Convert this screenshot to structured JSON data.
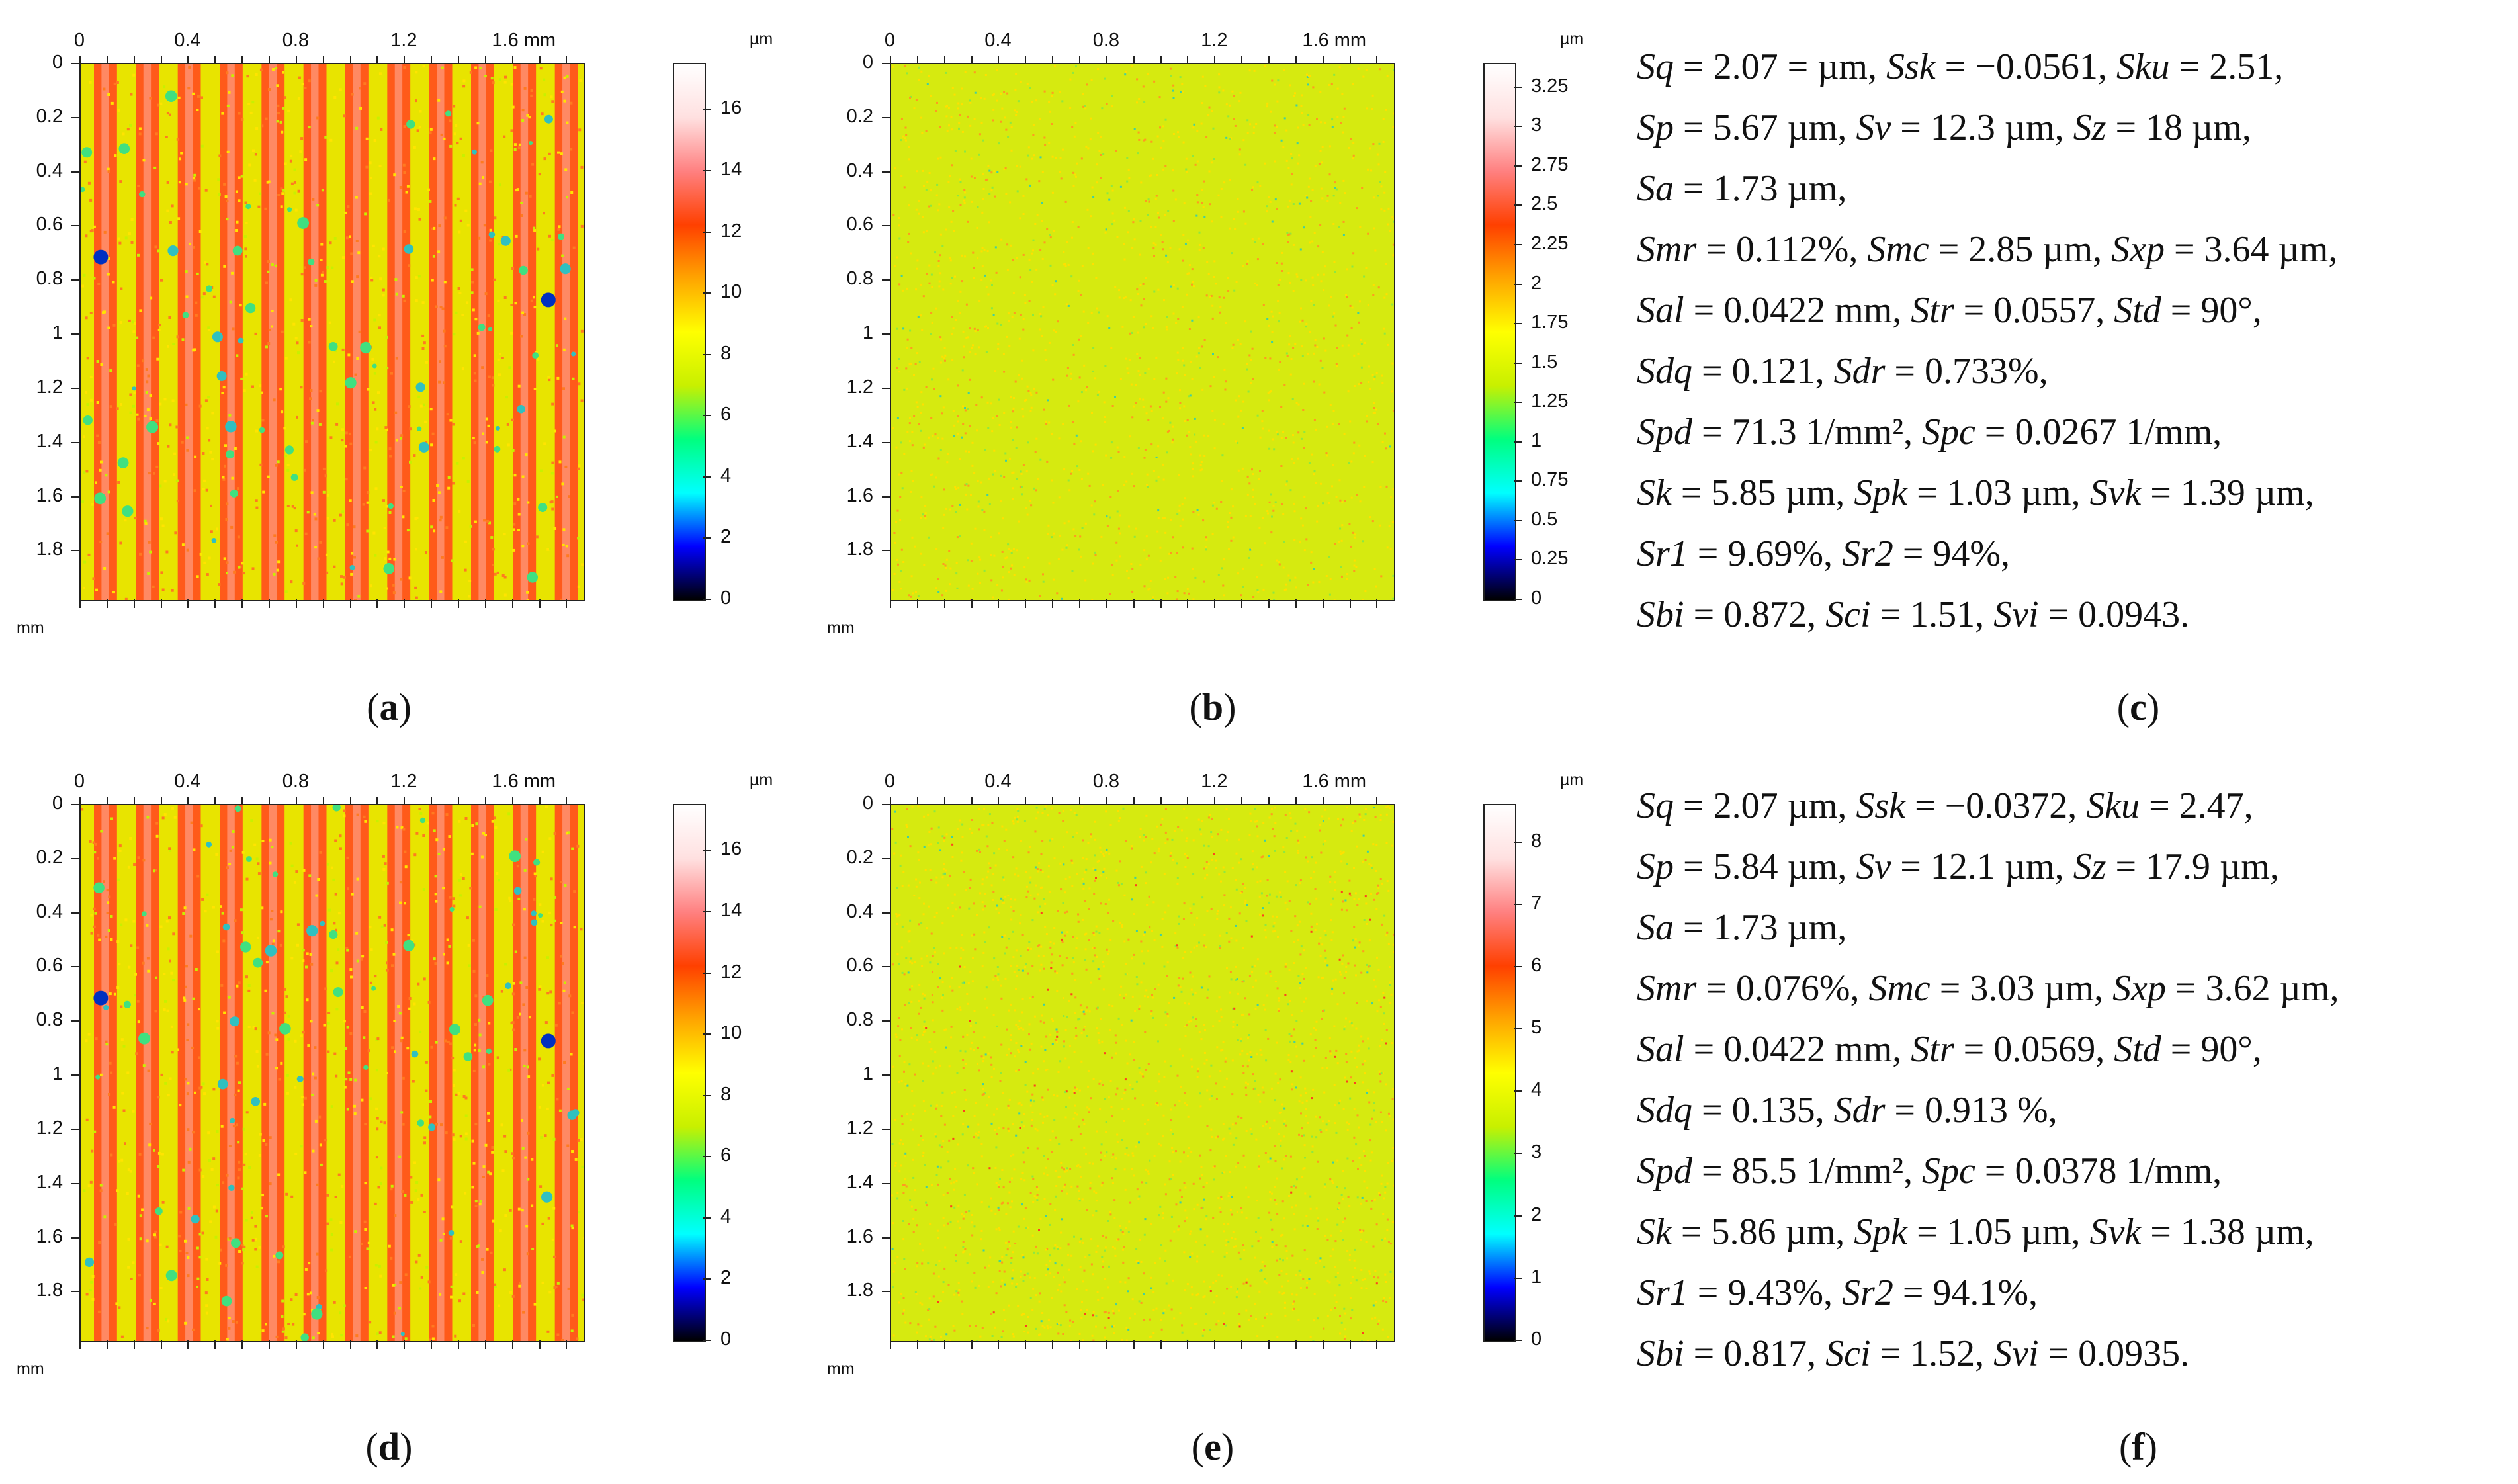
{
  "colors": {
    "scale": [
      "#000000",
      "#0000ff",
      "#00ffff",
      "#00ff7f",
      "#c8f000",
      "#ffff00",
      "#ffa500",
      "#ff4000",
      "#ff8080",
      "#ffe0e0",
      "#ffffff"
    ],
    "frame": "#222222"
  },
  "axis": {
    "x_ticks": [
      "0",
      "0.4",
      "0.8",
      "1.2",
      "1.6 mm"
    ],
    "y_ticks": [
      "0",
      "0.2",
      "0.4",
      "0.6",
      "0.8",
      "1",
      "1.2",
      "1.4",
      "1.6",
      "1.8"
    ],
    "corner_unit": "mm",
    "bar_unit": "µm"
  },
  "maps": {
    "a": {
      "caption_letter": "a",
      "kind": "striped",
      "bar_ticks": [
        "16",
        "14",
        "12",
        "10",
        "8",
        "6",
        "4",
        "2",
        "0"
      ],
      "bar_max": 17.5
    },
    "b": {
      "caption_letter": "b",
      "kind": "noise",
      "bar_ticks": [
        "3.25",
        "3",
        "2.75",
        "2.5",
        "2.25",
        "2",
        "1.75",
        "1.5",
        "1.25",
        "1",
        "0.75",
        "0.5",
        "0.25",
        "0"
      ],
      "bar_max": 3.4
    },
    "d": {
      "caption_letter": "d",
      "kind": "striped",
      "bar_ticks": [
        "16",
        "14",
        "12",
        "10",
        "8",
        "6",
        "4",
        "2",
        "0"
      ],
      "bar_max": 17.5
    },
    "e": {
      "caption_letter": "e",
      "kind": "noise",
      "bar_ticks": [
        "8",
        "7",
        "6",
        "5",
        "4",
        "3",
        "2",
        "1",
        "0"
      ],
      "bar_max": 8.6
    }
  },
  "captions": {
    "c": "c",
    "f": "f"
  },
  "params_c": [
    "Sq = 2.07 = µm, Ssk = −0.0561, Sku = 2.51,",
    "Sp = 5.67 µm, Sv = 12.3 µm, Sz = 18 µm,",
    "Sa = 1.73 µm,",
    "Smr = 0.112%, Smc = 2.85 µm, Sxp = 3.64 µm,",
    "Sal = 0.0422 mm, Str = 0.0557, Std = 90°,",
    "Sdq = 0.121, Sdr = 0.733%,",
    "Spd = 71.3 1/mm², Spc = 0.0267 1/mm,",
    "Sk = 5.85 µm, Spk = 1.03 µm, Svk = 1.39 µm,",
    "Sr1 = 9.69%, Sr2 = 94%,",
    "Sbi = 0.872, Sci = 1.51, Svi = 0.0943."
  ],
  "params_f": [
    "Sq = 2.07 µm, Ssk = −0.0372, Sku = 2.47,",
    "Sp = 5.84 µm, Sv = 12.1 µm, Sz = 17.9 µm,",
    "Sa = 1.73 µm,",
    "Smr = 0.076%, Smc = 3.03 µm, Sxp = 3.62 µm,",
    "Sal = 0.0422 mm, Str = 0.0569, Std = 90°,",
    "Sdq = 0.135, Sdr = 0.913 %,",
    "Spd = 85.5 1/mm², Spc = 0.0378 1/mm,",
    "Sk = 5.86 µm, Spk = 1.05 µm, Svk = 1.38 µm,",
    "Sr1 = 9.43%, Sr2 = 94.1%,",
    "Sbi = 0.817, Sci = 1.52, Svi = 0.0935."
  ]
}
